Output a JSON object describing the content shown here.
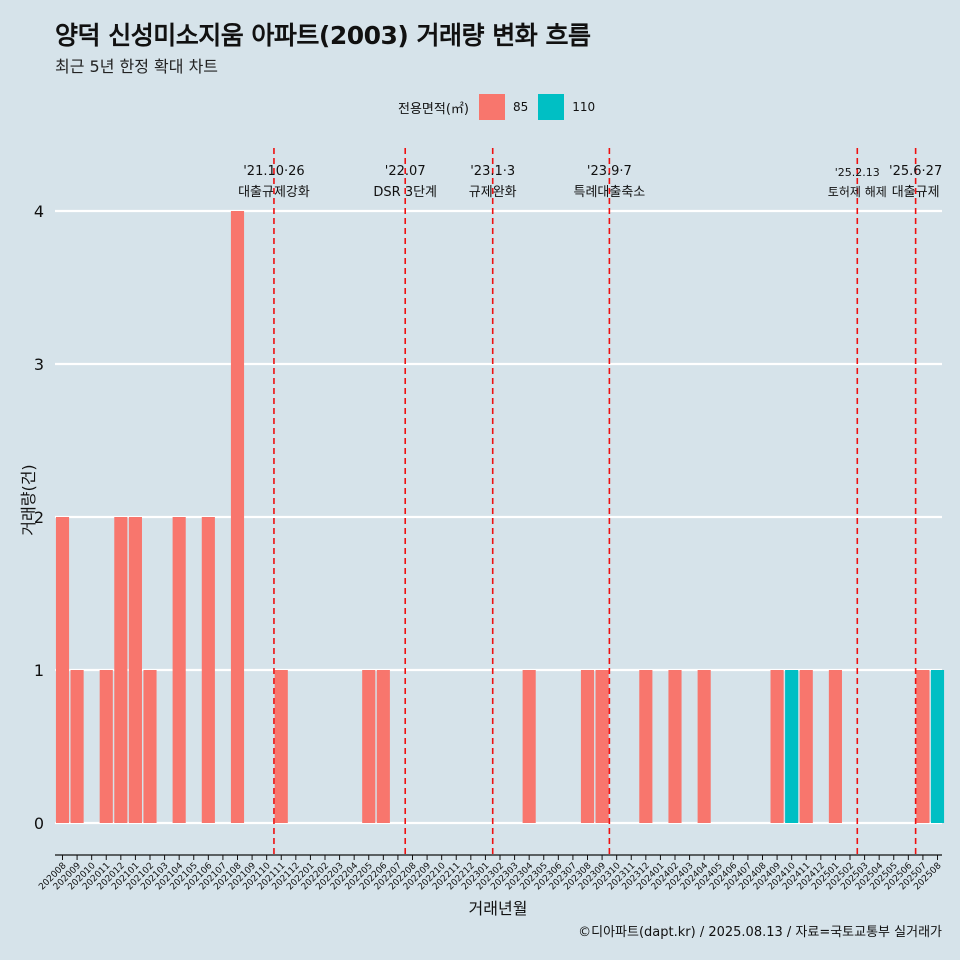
{
  "header": {
    "title": "양덕 신성미소지움 아파트(2003) 거래량 변화 흐름",
    "subtitle": "최근 5년 한정 확대 차트"
  },
  "legend": {
    "title": "전용면적(㎡)",
    "items": [
      {
        "label": "85",
        "color": "#F8766D"
      },
      {
        "label": "110",
        "color": "#00BFC4"
      }
    ]
  },
  "footer": {
    "source": "©디아파트(dapt.kr) / 2025.08.13 / 자료=국토교통부 실거래가"
  },
  "chart_data": {
    "type": "bar",
    "stacked": true,
    "xlabel": "거래년월",
    "ylabel": "거래량(건)",
    "ylim": [
      0,
      4
    ],
    "yticks": [
      0,
      1,
      2,
      3,
      4
    ],
    "grid": "horizontal",
    "legend_position": "top",
    "categories": [
      "202008",
      "202009",
      "202010",
      "202011",
      "202012",
      "202101",
      "202102",
      "202103",
      "202104",
      "202105",
      "202106",
      "202107",
      "202108",
      "202109",
      "202110",
      "202111",
      "202112",
      "202201",
      "202202",
      "202203",
      "202204",
      "202205",
      "202206",
      "202207",
      "202208",
      "202209",
      "202210",
      "202211",
      "202212",
      "202301",
      "202302",
      "202303",
      "202304",
      "202305",
      "202306",
      "202307",
      "202308",
      "202309",
      "202310",
      "202311",
      "202312",
      "202401",
      "202402",
      "202403",
      "202404",
      "202405",
      "202406",
      "202407",
      "202408",
      "202409",
      "202410",
      "202411",
      "202412",
      "202501",
      "202502",
      "202503",
      "202504",
      "202505",
      "202506",
      "202507",
      "202508"
    ],
    "series": [
      {
        "name": "85",
        "color": "#F8766D",
        "values": [
          2,
          1,
          0,
          1,
          2,
          2,
          1,
          0,
          2,
          0,
          2,
          0,
          4,
          0,
          0,
          1,
          0,
          0,
          0,
          0,
          0,
          1,
          1,
          0,
          0,
          0,
          0,
          0,
          0,
          0,
          0,
          0,
          1,
          0,
          0,
          0,
          1,
          1,
          0,
          0,
          1,
          0,
          1,
          0,
          1,
          0,
          0,
          0,
          0,
          1,
          0,
          1,
          0,
          1,
          0,
          0,
          0,
          0,
          0,
          1,
          0
        ]
      },
      {
        "name": "110",
        "color": "#00BFC4",
        "values": [
          0,
          0,
          0,
          0,
          0,
          0,
          0,
          0,
          0,
          0,
          0,
          0,
          0,
          0,
          0,
          0,
          0,
          0,
          0,
          0,
          0,
          0,
          0,
          0,
          0,
          0,
          0,
          0,
          0,
          0,
          0,
          0,
          0,
          0,
          0,
          0,
          0,
          0,
          0,
          0,
          0,
          0,
          0,
          0,
          0,
          0,
          0,
          0,
          0,
          0,
          1,
          0,
          0,
          0,
          0,
          0,
          0,
          0,
          0,
          0,
          1
        ]
      }
    ],
    "annotations": [
      {
        "line1": "'21.10·26",
        "line2": "대출규제강화",
        "x": "202110"
      },
      {
        "line1": "'22.07",
        "line2": "DSR 3단계",
        "x": "202207"
      },
      {
        "line1": "'23.1·3",
        "line2": "규제완화",
        "x": "202301"
      },
      {
        "line1": "'23.9·7",
        "line2": "특례대출축소",
        "x": "202309"
      },
      {
        "line1": "'25.2.13",
        "line2": "토허제 해제",
        "x": "202502"
      },
      {
        "line1": "'25.6·27",
        "line2": "대출규제",
        "x": "202506"
      }
    ]
  }
}
